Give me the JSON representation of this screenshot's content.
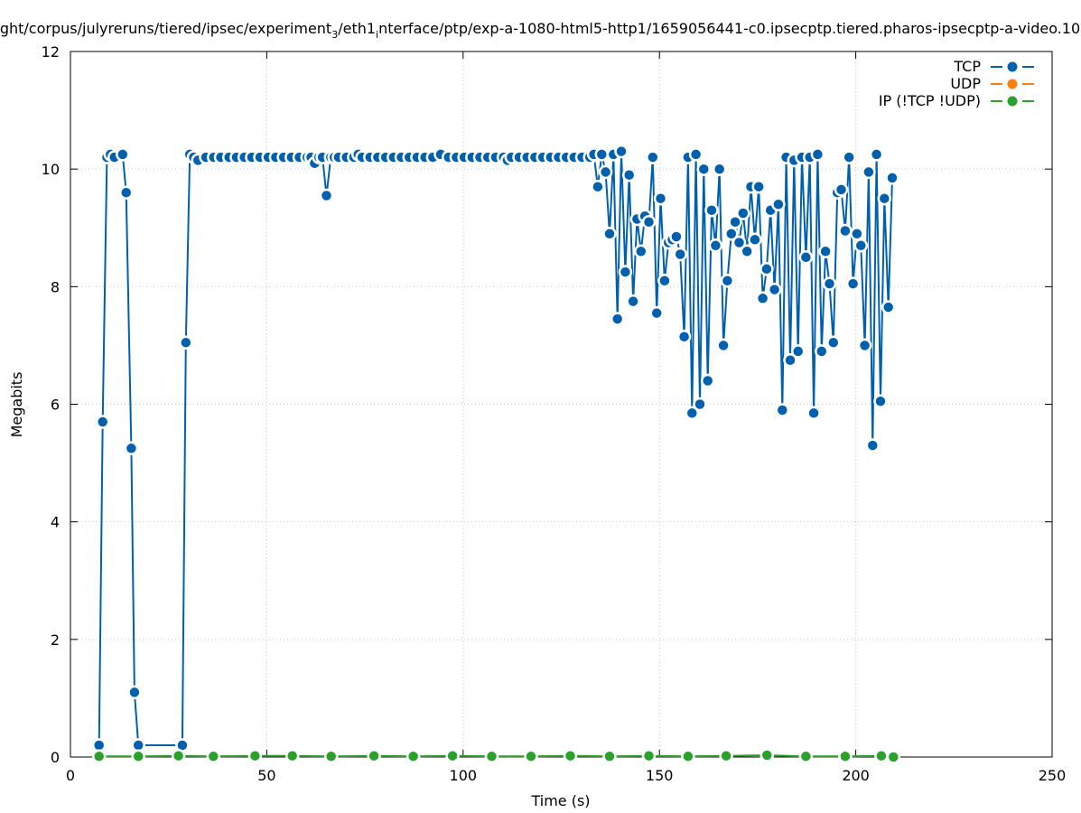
{
  "chart_data": {
    "type": "line",
    "title": "ght/corpus/julyreruns/tiered/ipsec/experiment_3/eth1_interface/ptp/exp-a-1080-html5-http1/1659056441-c0.ipsecptp.tiered.pharos-ipsecptp-a-video.10",
    "title_parts": {
      "p1": "ght/corpus/julyreruns/tiered/ipsec/experiment",
      "sub1": "3",
      "p2": "/eth1",
      "sub2": "i",
      "p3": "nterface/ptp/exp-a-1080-html5-http1/1659056441-c0.ipsecptp.tiered.pharos-ipsecptp-a-video.10"
    },
    "xlabel": "Time (s)",
    "ylabel": "Megabits",
    "xlim": [
      0,
      250
    ],
    "ylim": [
      0,
      12
    ],
    "xticks": [
      "0",
      "50",
      "100",
      "150",
      "200",
      "250"
    ],
    "yticks": [
      "0",
      "2",
      "4",
      "6",
      "8",
      "10",
      "12"
    ],
    "grid": true,
    "legend_position": "top-right",
    "series": [
      {
        "name": "TCP",
        "color": "#0060ad",
        "points": [
          [
            7.3,
            0.2
          ],
          [
            8.2,
            5.7
          ],
          [
            9.3,
            10.2
          ],
          [
            10.2,
            10.25
          ],
          [
            11.2,
            10.2
          ],
          [
            13.3,
            10.25
          ],
          [
            14.2,
            9.6
          ],
          [
            15.5,
            5.25
          ],
          [
            16.3,
            1.1
          ],
          [
            17.3,
            0.2
          ],
          [
            28.5,
            0.2
          ],
          [
            29.4,
            7.05
          ],
          [
            30.4,
            10.25
          ],
          [
            31.4,
            10.2
          ],
          [
            32.5,
            10.15
          ],
          [
            34.5,
            10.2
          ],
          [
            36.5,
            10.2
          ],
          [
            38.3,
            10.2
          ],
          [
            40.4,
            10.2
          ],
          [
            42.3,
            10.2
          ],
          [
            44.3,
            10.2
          ],
          [
            46.2,
            10.2
          ],
          [
            48.3,
            10.2
          ],
          [
            50.4,
            10.2
          ],
          [
            52.3,
            10.2
          ],
          [
            54.3,
            10.2
          ],
          [
            56.3,
            10.2
          ],
          [
            58.3,
            10.2
          ],
          [
            60.3,
            10.2
          ],
          [
            61.3,
            10.2
          ],
          [
            62.2,
            10.1
          ],
          [
            63.3,
            10.2
          ],
          [
            64.2,
            10.2
          ],
          [
            65.2,
            9.55
          ],
          [
            66.3,
            10.2
          ],
          [
            67.2,
            10.2
          ],
          [
            68.3,
            10.2
          ],
          [
            70.3,
            10.2
          ],
          [
            72.2,
            10.2
          ],
          [
            73.3,
            10.25
          ],
          [
            74.3,
            10.2
          ],
          [
            76.3,
            10.2
          ],
          [
            78.3,
            10.2
          ],
          [
            80.3,
            10.2
          ],
          [
            82.3,
            10.2
          ],
          [
            84.3,
            10.2
          ],
          [
            86.3,
            10.2
          ],
          [
            88.3,
            10.2
          ],
          [
            90.3,
            10.2
          ],
          [
            92.3,
            10.2
          ],
          [
            94.3,
            10.25
          ],
          [
            96.3,
            10.2
          ],
          [
            98.3,
            10.2
          ],
          [
            100.3,
            10.2
          ],
          [
            102.3,
            10.2
          ],
          [
            104.3,
            10.2
          ],
          [
            106.3,
            10.2
          ],
          [
            108.3,
            10.2
          ],
          [
            110.3,
            10.2
          ],
          [
            111.3,
            10.15
          ],
          [
            112.3,
            10.2
          ],
          [
            114.3,
            10.2
          ],
          [
            116.3,
            10.2
          ],
          [
            118.3,
            10.2
          ],
          [
            120.3,
            10.2
          ],
          [
            122.3,
            10.2
          ],
          [
            124.3,
            10.2
          ],
          [
            126.3,
            10.2
          ],
          [
            128.3,
            10.2
          ],
          [
            130.3,
            10.2
          ],
          [
            132.3,
            10.2
          ],
          [
            133.3,
            10.25
          ],
          [
            134.3,
            9.7
          ],
          [
            135.3,
            10.25
          ],
          [
            136.3,
            9.95
          ],
          [
            137.3,
            8.9
          ],
          [
            138.3,
            10.25
          ],
          [
            139.3,
            7.45
          ],
          [
            140.3,
            10.3
          ],
          [
            141.3,
            8.25
          ],
          [
            142.3,
            9.9
          ],
          [
            143.3,
            7.75
          ],
          [
            144.3,
            9.15
          ],
          [
            145.3,
            8.6
          ],
          [
            146.3,
            9.2
          ],
          [
            147.3,
            9.1
          ],
          [
            148.3,
            10.2
          ],
          [
            149.3,
            7.55
          ],
          [
            150.3,
            9.5
          ],
          [
            151.3,
            8.1
          ],
          [
            152.3,
            8.75
          ],
          [
            153.3,
            8.8
          ],
          [
            154.3,
            8.85
          ],
          [
            155.3,
            8.55
          ],
          [
            156.3,
            7.15
          ],
          [
            157.3,
            10.2
          ],
          [
            158.3,
            5.85
          ],
          [
            159.3,
            10.25
          ],
          [
            160.3,
            6.0
          ],
          [
            161.3,
            10.0
          ],
          [
            162.3,
            6.4
          ],
          [
            163.3,
            9.3
          ],
          [
            164.3,
            8.7
          ],
          [
            165.3,
            10.0
          ],
          [
            166.3,
            7.0
          ],
          [
            167.3,
            8.1
          ],
          [
            168.3,
            8.9
          ],
          [
            169.3,
            9.1
          ],
          [
            170.3,
            8.75
          ],
          [
            171.3,
            9.25
          ],
          [
            172.3,
            8.6
          ],
          [
            173.3,
            9.7
          ],
          [
            174.3,
            8.8
          ],
          [
            175.3,
            9.7
          ],
          [
            176.3,
            7.8
          ],
          [
            177.3,
            8.3
          ],
          [
            178.3,
            9.3
          ],
          [
            179.3,
            7.95
          ],
          [
            180.3,
            9.4
          ],
          [
            181.3,
            5.9
          ],
          [
            182.3,
            10.2
          ],
          [
            183.3,
            6.75
          ],
          [
            184.3,
            10.15
          ],
          [
            185.3,
            6.9
          ],
          [
            186.3,
            10.2
          ],
          [
            187.3,
            8.5
          ],
          [
            188.3,
            10.2
          ],
          [
            189.3,
            5.85
          ],
          [
            190.3,
            10.25
          ],
          [
            191.3,
            6.9
          ],
          [
            192.3,
            8.6
          ],
          [
            193.3,
            8.05
          ],
          [
            194.3,
            7.05
          ],
          [
            195.3,
            9.6
          ],
          [
            196.3,
            9.65
          ],
          [
            197.3,
            8.95
          ],
          [
            198.3,
            10.2
          ],
          [
            199.3,
            8.05
          ],
          [
            200.3,
            8.9
          ],
          [
            201.3,
            8.7
          ],
          [
            202.3,
            7.0
          ],
          [
            203.3,
            9.95
          ],
          [
            204.3,
            5.3
          ],
          [
            205.3,
            10.25
          ],
          [
            206.3,
            6.05
          ],
          [
            207.3,
            9.5
          ],
          [
            208.3,
            7.65
          ],
          [
            209.3,
            9.85
          ]
        ]
      },
      {
        "name": "UDP",
        "color": "#ff7f0e",
        "points": []
      },
      {
        "name": "IP (!TCP  !UDP)",
        "color": "#2ca02c",
        "points": [
          [
            7.3,
            0.01
          ],
          [
            17.3,
            0.01
          ],
          [
            27.5,
            0.02
          ],
          [
            36.4,
            0.01
          ],
          [
            47.0,
            0.02
          ],
          [
            56.5,
            0.02
          ],
          [
            66.4,
            0.01
          ],
          [
            77.3,
            0.02
          ],
          [
            87.3,
            0.01
          ],
          [
            97.3,
            0.02
          ],
          [
            107.3,
            0.01
          ],
          [
            117.3,
            0.01
          ],
          [
            127.3,
            0.02
          ],
          [
            137.3,
            0.01
          ],
          [
            147.3,
            0.02
          ],
          [
            157.3,
            0.01
          ],
          [
            167.0,
            0.02
          ],
          [
            177.4,
            0.03
          ],
          [
            187.3,
            0.01
          ],
          [
            197.3,
            0.01
          ],
          [
            206.5,
            0.02
          ],
          [
            209.6,
            0.0
          ]
        ]
      }
    ]
  }
}
